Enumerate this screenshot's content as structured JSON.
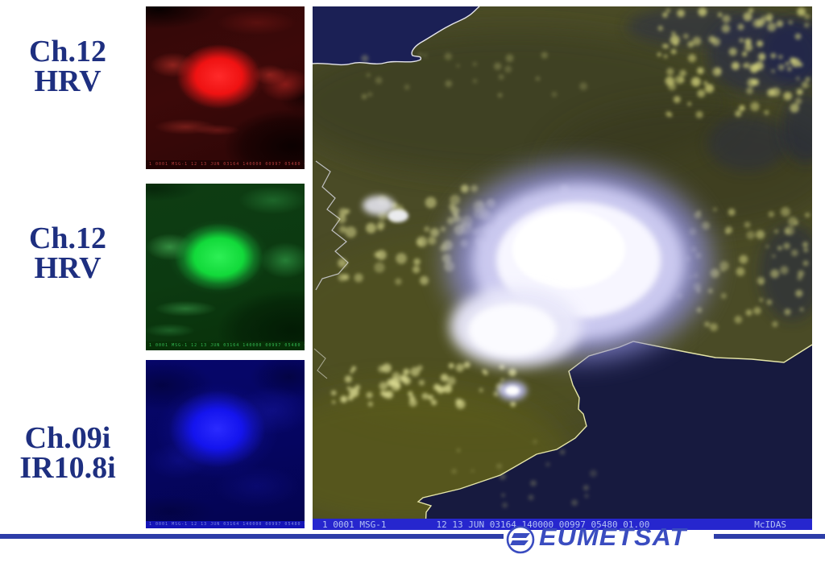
{
  "labels": [
    {
      "channel": "red",
      "line1": "Ch.12",
      "line2": "HRV"
    },
    {
      "channel": "green",
      "line1": "Ch.12",
      "line2": "HRV"
    },
    {
      "channel": "blue",
      "line1": "Ch.09i",
      "line2": "IR10.8i"
    }
  ],
  "main_image": {
    "status_bar": {
      "left": "1 0001 MSG-1",
      "middle": "12 13 JUN 03164 140000 00997 05480 01.00",
      "right": "McIDAS"
    }
  },
  "thumb_status": "1 0001 MSG-1  12 13 JUN 03164 140000 00997 05480 01.00  McIDAS",
  "logo": {
    "text": "EUMETSAT"
  },
  "colors": {
    "label_text": "#1e2f80",
    "rule_blue": "#2d3da8",
    "logo_blue": "#3a4cc0",
    "status_bg": "#2626ce",
    "status_fg": "#b4c2f4",
    "red_channel": "#ee1111",
    "green_channel": "#17d93b",
    "blue_channel": "#1616ee",
    "land_olive": "#4a4b26",
    "sea_navy": "#1b2055"
  }
}
